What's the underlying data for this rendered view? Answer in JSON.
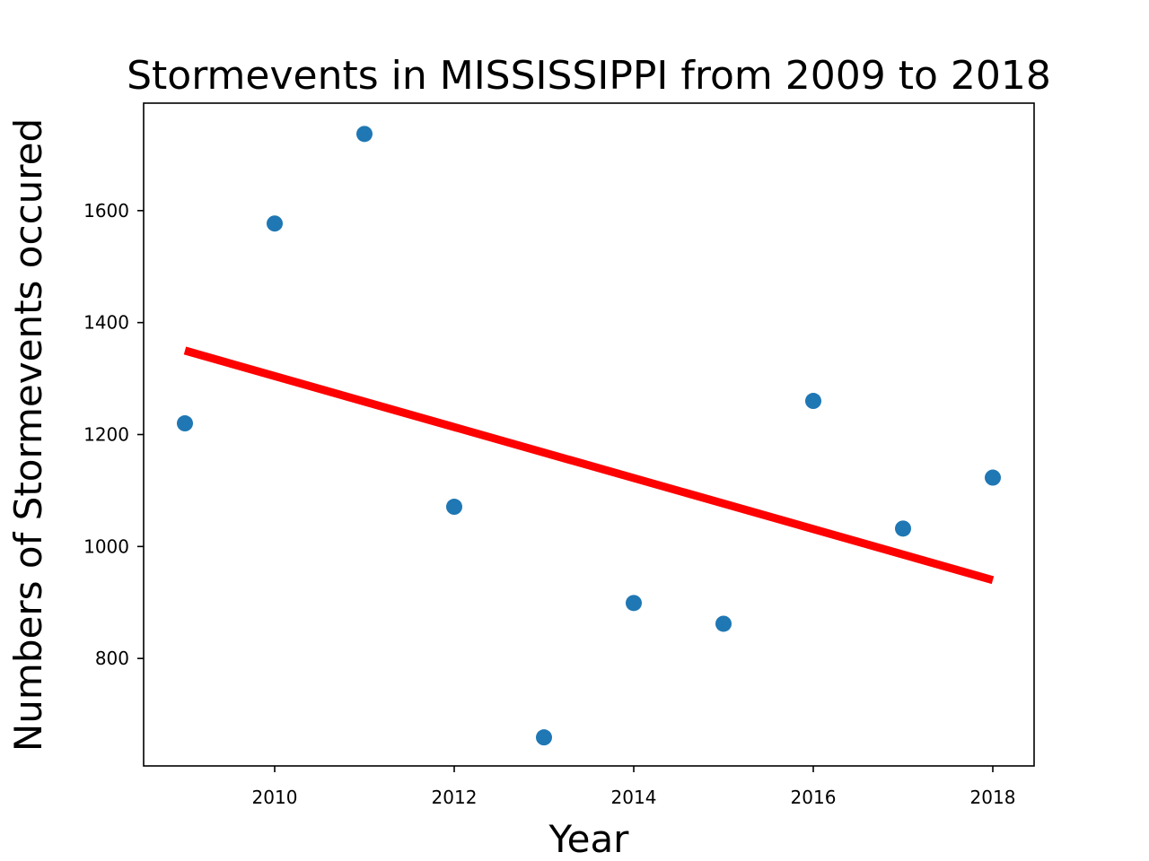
{
  "chart_data": {
    "type": "scatter",
    "title": "Stormevents in MISSISSIPPI from 2009 to 2018",
    "xlabel": "Year",
    "ylabel": "Numbers of Stormevents occured",
    "x": [
      2009,
      2010,
      2011,
      2012,
      2013,
      2014,
      2015,
      2016,
      2017,
      2018
    ],
    "y": [
      1220,
      1577,
      1737,
      1071,
      659,
      899,
      862,
      1260,
      1032,
      1123
    ],
    "trendline": {
      "x": [
        2009,
        2018
      ],
      "y": [
        1350,
        940
      ],
      "color": "#ff0000"
    },
    "point_color": "#1f77b4",
    "xlim": [
      2008.54,
      2018.46
    ],
    "ylim": [
      608,
      1792
    ],
    "xticks": [
      2010,
      2012,
      2014,
      2016,
      2018
    ],
    "yticks": [
      800,
      1000,
      1200,
      1400,
      1600
    ],
    "grid": false,
    "legend": false
  }
}
